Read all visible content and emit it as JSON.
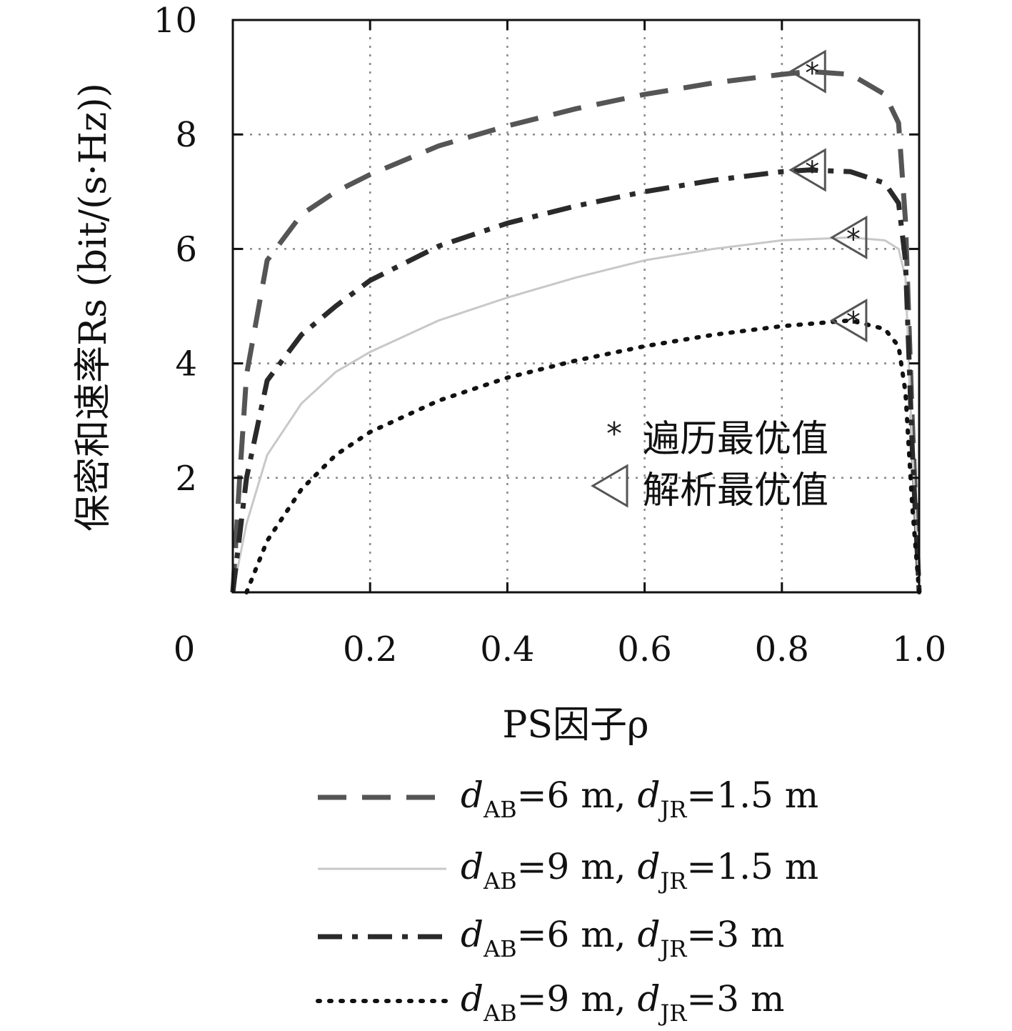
{
  "chart_data": {
    "type": "line",
    "xlabel": "PS因子ρ",
    "ylabel": "保密和速率Rs (bit/(s·Hz))",
    "xlim": [
      0,
      1.0
    ],
    "ylim": [
      0,
      10
    ],
    "x_ticks": [
      "0",
      "0.2",
      "0.4",
      "0.6",
      "0.8",
      "1.0"
    ],
    "y_ticks": [
      "2",
      "4",
      "6",
      "8",
      "10"
    ],
    "grid": true,
    "series": [
      {
        "name": "dAB=6 m, dJR=1.5 m",
        "name_parts": {
          "d1": "d",
          "s1": "AB",
          "t1": "=6 m, ",
          "d2": "d",
          "s2": "JR",
          "t2": "=1.5 m"
        },
        "style": "dashed",
        "color": "#555555",
        "x": [
          0.0,
          0.01,
          0.02,
          0.05,
          0.1,
          0.15,
          0.2,
          0.3,
          0.4,
          0.5,
          0.6,
          0.7,
          0.8,
          0.84,
          0.9,
          0.95,
          0.97,
          0.98,
          0.99,
          1.0
        ],
        "y": [
          0.0,
          2.0,
          3.8,
          5.8,
          6.6,
          7.0,
          7.3,
          7.8,
          8.15,
          8.45,
          8.7,
          8.9,
          9.05,
          9.1,
          9.05,
          8.7,
          8.2,
          6.5,
          3.0,
          0.0
        ]
      },
      {
        "name": "dAB=9 m, dJR=1.5 m",
        "name_parts": {
          "d1": "d",
          "s1": "AB",
          "t1": "=9 m, ",
          "d2": "d",
          "s2": "JR",
          "t2": "=1.5 m"
        },
        "style": "solid",
        "color": "#c8c8c8",
        "x": [
          0.0,
          0.02,
          0.05,
          0.1,
          0.15,
          0.2,
          0.3,
          0.4,
          0.5,
          0.6,
          0.7,
          0.8,
          0.9,
          0.95,
          0.97,
          0.98,
          0.99,
          1.0
        ],
        "y": [
          0.0,
          1.2,
          2.4,
          3.3,
          3.85,
          4.2,
          4.75,
          5.15,
          5.5,
          5.8,
          6.0,
          6.15,
          6.2,
          6.15,
          6.0,
          5.5,
          2.5,
          0.0
        ]
      },
      {
        "name": "dAB=6 m, dJR=3 m",
        "name_parts": {
          "d1": "d",
          "s1": "AB",
          "t1": "=6 m, ",
          "d2": "d",
          "s2": "JR",
          "t2": "=3 m"
        },
        "style": "dashdot",
        "color": "#2a2a2a",
        "x": [
          0.0,
          0.01,
          0.02,
          0.05,
          0.1,
          0.15,
          0.2,
          0.3,
          0.4,
          0.5,
          0.6,
          0.7,
          0.8,
          0.84,
          0.9,
          0.95,
          0.97,
          0.98,
          0.99,
          1.0
        ],
        "y": [
          0.0,
          1.0,
          2.0,
          3.7,
          4.5,
          5.0,
          5.45,
          6.05,
          6.45,
          6.75,
          7.0,
          7.2,
          7.35,
          7.38,
          7.35,
          7.15,
          6.8,
          5.8,
          2.5,
          0.0
        ]
      },
      {
        "name": "dAB=9 m, dJR=3 m",
        "name_parts": {
          "d1": "d",
          "s1": "AB",
          "t1": "=9 m, ",
          "d2": "d",
          "s2": "JR",
          "t2": "=3 m"
        },
        "style": "dotted",
        "color": "#111111",
        "x": [
          0.02,
          0.05,
          0.1,
          0.15,
          0.2,
          0.3,
          0.4,
          0.5,
          0.6,
          0.7,
          0.8,
          0.9,
          0.95,
          0.97,
          0.98,
          0.99,
          1.0
        ],
        "y": [
          0.0,
          0.9,
          1.8,
          2.4,
          2.8,
          3.35,
          3.75,
          4.05,
          4.3,
          4.5,
          4.65,
          4.75,
          4.6,
          4.3,
          3.5,
          1.5,
          0.0
        ]
      }
    ],
    "markers": {
      "traversal": {
        "label": "遍历最优值",
        "symbol": "*",
        "points": [
          [
            0.84,
            9.1
          ],
          [
            0.84,
            7.38
          ],
          [
            0.9,
            6.2
          ],
          [
            0.9,
            4.75
          ]
        ]
      },
      "analytic": {
        "label": "解析最优值",
        "symbol": "triangle-left",
        "points": [
          [
            0.84,
            9.1
          ],
          [
            0.84,
            7.38
          ],
          [
            0.9,
            6.2
          ],
          [
            0.9,
            4.75
          ]
        ]
      }
    }
  }
}
